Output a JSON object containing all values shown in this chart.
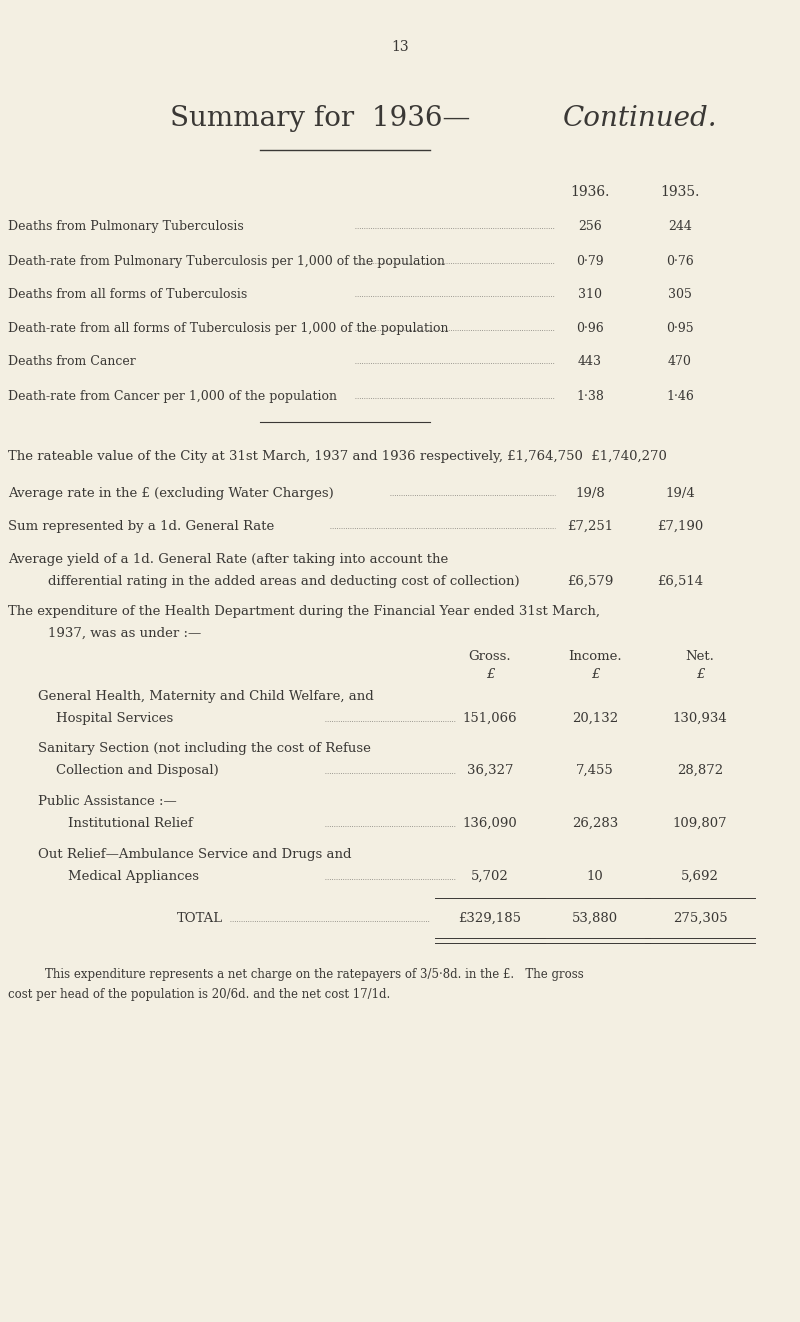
{
  "bg_color": "#f3efe2",
  "text_color": "#3a3835",
  "page_number": "13",
  "title_part1": "Summary for  1936—",
  "title_part2": "Continued.",
  "col1936_label": "1936.",
  "col1935_label": "1935.",
  "table_rows": [
    {
      "label": "Deaths from Pulmonary Tuberculosis",
      "val1936": "256",
      "val1935": "244"
    },
    {
      "label": "Death-rate from Pulmonary Tuberculosis per 1,000 of the population",
      "val1936": "0·79",
      "val1935": "0·76"
    },
    {
      "label": "Deaths from all forms of Tuberculosis",
      "val1936": "310",
      "val1935": "305"
    },
    {
      "label": "Death-rate from all forms of Tuberculosis per 1,000 of the population",
      "val1936": "0·96",
      "val1935": "0·95"
    },
    {
      "label": "Deaths from Cancer",
      "val1936": "443",
      "val1935": "470"
    },
    {
      "label": "Death-rate from Cancer per 1,000 of the population",
      "val1936": "1·38",
      "val1935": "1·46"
    }
  ],
  "para_rateable": "The rateable value of the City at 31st March, 1937 and 1936 respectively, £1,764,750  £1,740,270",
  "para_avg_rate_label": "Average rate in the £ (excluding Water Charges)",
  "para_avg_rate_1936": "19/8",
  "para_avg_rate_1935": "19/4",
  "para_sum_label": "Sum represented by a 1d. General Rate",
  "para_sum_1936": "£7,251",
  "para_sum_1935": "£7,190",
  "para_yield_line1": "Average yield of a 1d. General Rate (after taking into account the",
  "para_yield_line2": "differential rating in the added areas and deducting cost of collection)",
  "para_yield_1936": "£6,579",
  "para_yield_1935": "£6,514",
  "para_exp_line1": "The expenditure of the Health Department during the Financial Year ended 31st March,",
  "para_exp_line2": "1937, was as under :—",
  "col_gross": "Gross.",
  "col_income": "Income.",
  "col_net": "Net.",
  "expenditure_rows": [
    {
      "label1": "General Health, Maternity and Child Welfare, and",
      "label2": "Hospital Services",
      "indent2": false,
      "gross": "151,066",
      "income": "20,132",
      "net": "130,934"
    },
    {
      "label1": "Sanitary Section (not including the cost of Refuse",
      "label2": "Collection and Disposal)",
      "indent2": false,
      "gross": "36,327",
      "income": "7,455",
      "net": "28,872"
    },
    {
      "label1": "Public Assistance :—",
      "label2": "Institutional Relief",
      "indent2": true,
      "gross": "136,090",
      "income": "26,283",
      "net": "109,807"
    },
    {
      "label1": "Out Relief—Ambulance Service and Drugs and",
      "label2": "Medical Appliances",
      "indent2": true,
      "gross": "5,702",
      "income": "10",
      "net": "5,692"
    }
  ],
  "total_gross": "£329,185",
  "total_income": "53,880",
  "total_net": "275,305",
  "footer_line1": "This expenditure represents a net charge on the ratepayers of 3/5·8d. in the £.   The gross",
  "footer_line2": "cost per head of the population is 20/6d. and the net cost 17/1d."
}
